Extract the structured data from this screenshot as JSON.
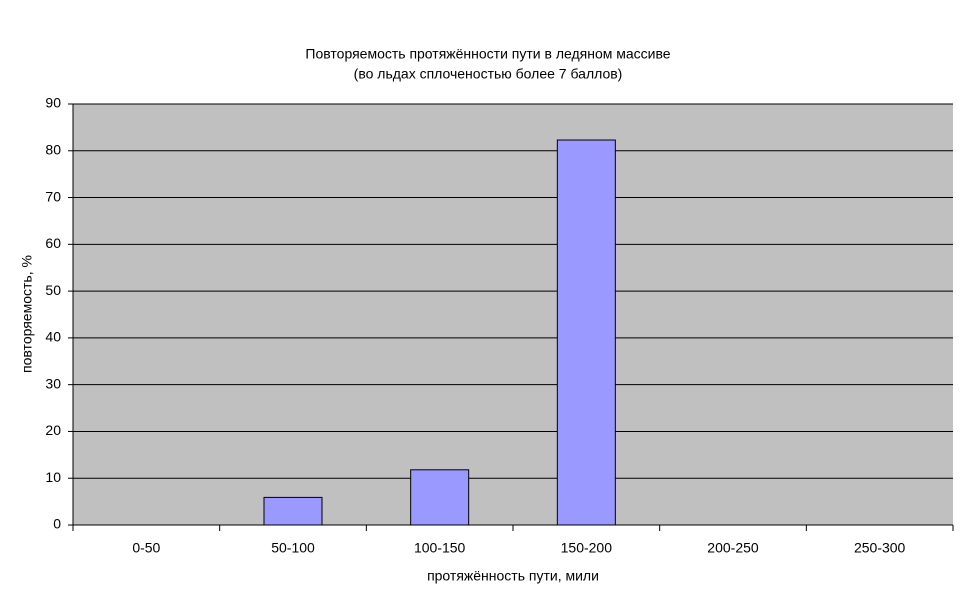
{
  "chart_data": {
    "type": "bar",
    "title": "Повторяемость протяжённости пути в ледяном массиве",
    "subtitle": "(во льдах сплоченостью более 7 баллов)",
    "x_label": "протяжённость пути, мили",
    "y_label": "повторяемость, %",
    "categories": [
      "0-50",
      "50-100",
      "100-150",
      "150-200",
      "200-250",
      "250-300"
    ],
    "values": [
      0,
      5.9,
      11.8,
      82.3,
      0,
      0
    ],
    "color": "#9999ff",
    "ylim": [
      0,
      90
    ],
    "yticks": [
      0,
      10,
      20,
      30,
      40,
      50,
      60,
      70,
      80,
      90
    ],
    "grid": true
  }
}
